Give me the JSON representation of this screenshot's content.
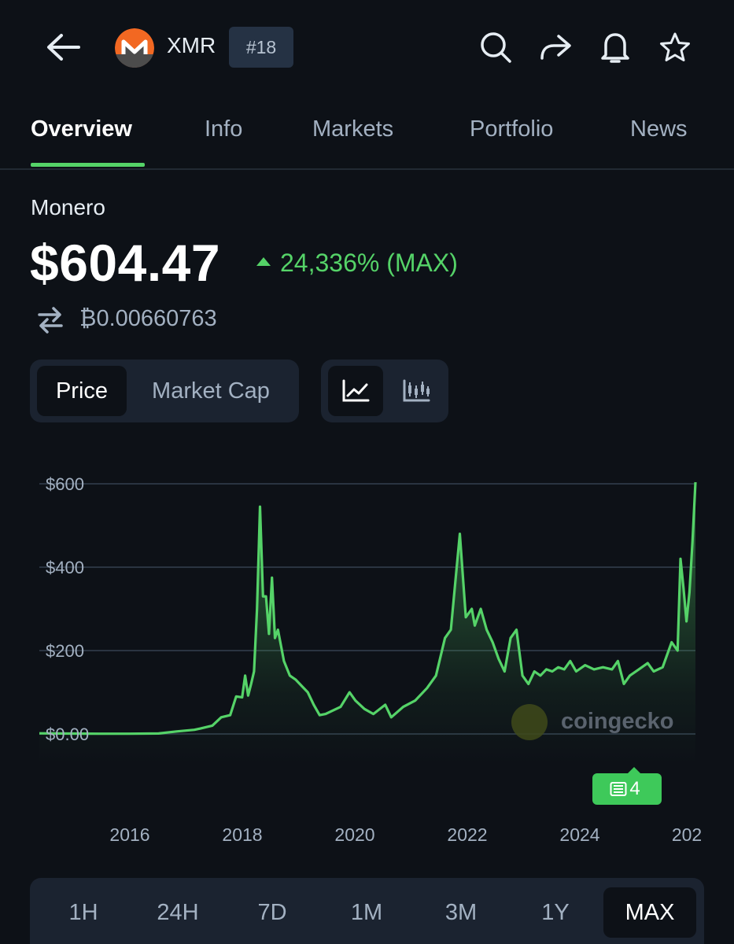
{
  "header": {
    "ticker": "XMR",
    "rank": "#18",
    "icons": [
      "back-arrow-icon",
      "search-icon",
      "share-icon",
      "bell-icon",
      "star-icon"
    ]
  },
  "tabs": [
    {
      "label": "Overview",
      "active": true
    },
    {
      "label": "Info",
      "active": false
    },
    {
      "label": "Markets",
      "active": false
    },
    {
      "label": "Portfolio",
      "active": false
    },
    {
      "label": "News",
      "active": false
    }
  ],
  "coin": {
    "name": "Monero",
    "price": "$604.47",
    "change": "24,336% (MAX)",
    "btc_price": "₿0.00660763"
  },
  "toggles": {
    "metric": [
      "Price",
      "Market Cap"
    ],
    "active_metric": "Price",
    "chart_type_icons": [
      "line-chart-icon",
      "candlestick-icon"
    ],
    "active_chart_type": "line-chart-icon"
  },
  "watermark": "coingecko",
  "news_badge": {
    "count": "4"
  },
  "ranges": [
    "1H",
    "24H",
    "7D",
    "1M",
    "3M",
    "1Y",
    "MAX"
  ],
  "active_range": "MAX",
  "colors": {
    "accent": "#55d368",
    "background": "#0d1117",
    "panel": "#1b2330"
  },
  "chart_data": {
    "type": "area",
    "y_ticks": [
      "$600",
      "$400",
      "$200",
      "$0.00"
    ],
    "x_ticks": [
      "2016",
      "2018",
      "2020",
      "2022",
      "2024",
      "202"
    ],
    "ylim": [
      0,
      600
    ],
    "xlim": [
      2014.3,
      2025.3
    ],
    "grid": true,
    "points": [
      [
        2014.3,
        1.5
      ],
      [
        2014.8,
        1.0
      ],
      [
        2015.3,
        0.6
      ],
      [
        2015.8,
        0.5
      ],
      [
        2016.3,
        1.2
      ],
      [
        2016.6,
        6
      ],
      [
        2016.9,
        10
      ],
      [
        2017.0,
        13
      ],
      [
        2017.2,
        20
      ],
      [
        2017.35,
        40
      ],
      [
        2017.5,
        45
      ],
      [
        2017.6,
        90
      ],
      [
        2017.7,
        88
      ],
      [
        2017.75,
        140
      ],
      [
        2017.8,
        92
      ],
      [
        2017.85,
        120
      ],
      [
        2017.9,
        150
      ],
      [
        2017.95,
        300
      ],
      [
        2018.0,
        545
      ],
      [
        2018.05,
        330
      ],
      [
        2018.1,
        330
      ],
      [
        2018.15,
        240
      ],
      [
        2018.2,
        375
      ],
      [
        2018.25,
        230
      ],
      [
        2018.3,
        250
      ],
      [
        2018.4,
        175
      ],
      [
        2018.5,
        140
      ],
      [
        2018.6,
        130
      ],
      [
        2018.7,
        115
      ],
      [
        2018.8,
        100
      ],
      [
        2018.9,
        70
      ],
      [
        2019.0,
        45
      ],
      [
        2019.1,
        48
      ],
      [
        2019.2,
        55
      ],
      [
        2019.35,
        65
      ],
      [
        2019.5,
        100
      ],
      [
        2019.6,
        80
      ],
      [
        2019.75,
        60
      ],
      [
        2019.9,
        48
      ],
      [
        2020.1,
        70
      ],
      [
        2020.2,
        40
      ],
      [
        2020.4,
        65
      ],
      [
        2020.6,
        80
      ],
      [
        2020.8,
        110
      ],
      [
        2020.95,
        140
      ],
      [
        2021.1,
        230
      ],
      [
        2021.2,
        250
      ],
      [
        2021.35,
        480
      ],
      [
        2021.45,
        280
      ],
      [
        2021.55,
        300
      ],
      [
        2021.6,
        260
      ],
      [
        2021.7,
        300
      ],
      [
        2021.8,
        250
      ],
      [
        2021.9,
        220
      ],
      [
        2022.0,
        180
      ],
      [
        2022.1,
        150
      ],
      [
        2022.2,
        230
      ],
      [
        2022.3,
        250
      ],
      [
        2022.4,
        140
      ],
      [
        2022.5,
        120
      ],
      [
        2022.6,
        150
      ],
      [
        2022.7,
        140
      ],
      [
        2022.8,
        155
      ],
      [
        2022.9,
        150
      ],
      [
        2023.0,
        160
      ],
      [
        2023.1,
        155
      ],
      [
        2023.2,
        175
      ],
      [
        2023.3,
        150
      ],
      [
        2023.45,
        165
      ],
      [
        2023.6,
        155
      ],
      [
        2023.75,
        160
      ],
      [
        2023.9,
        155
      ],
      [
        2024.0,
        175
      ],
      [
        2024.1,
        120
      ],
      [
        2024.2,
        140
      ],
      [
        2024.35,
        155
      ],
      [
        2024.5,
        170
      ],
      [
        2024.6,
        150
      ],
      [
        2024.75,
        160
      ],
      [
        2024.9,
        220
      ],
      [
        2025.0,
        200
      ],
      [
        2025.05,
        420
      ],
      [
        2025.1,
        350
      ],
      [
        2025.15,
        270
      ],
      [
        2025.2,
        340
      ],
      [
        2025.25,
        460
      ],
      [
        2025.3,
        604
      ]
    ]
  }
}
